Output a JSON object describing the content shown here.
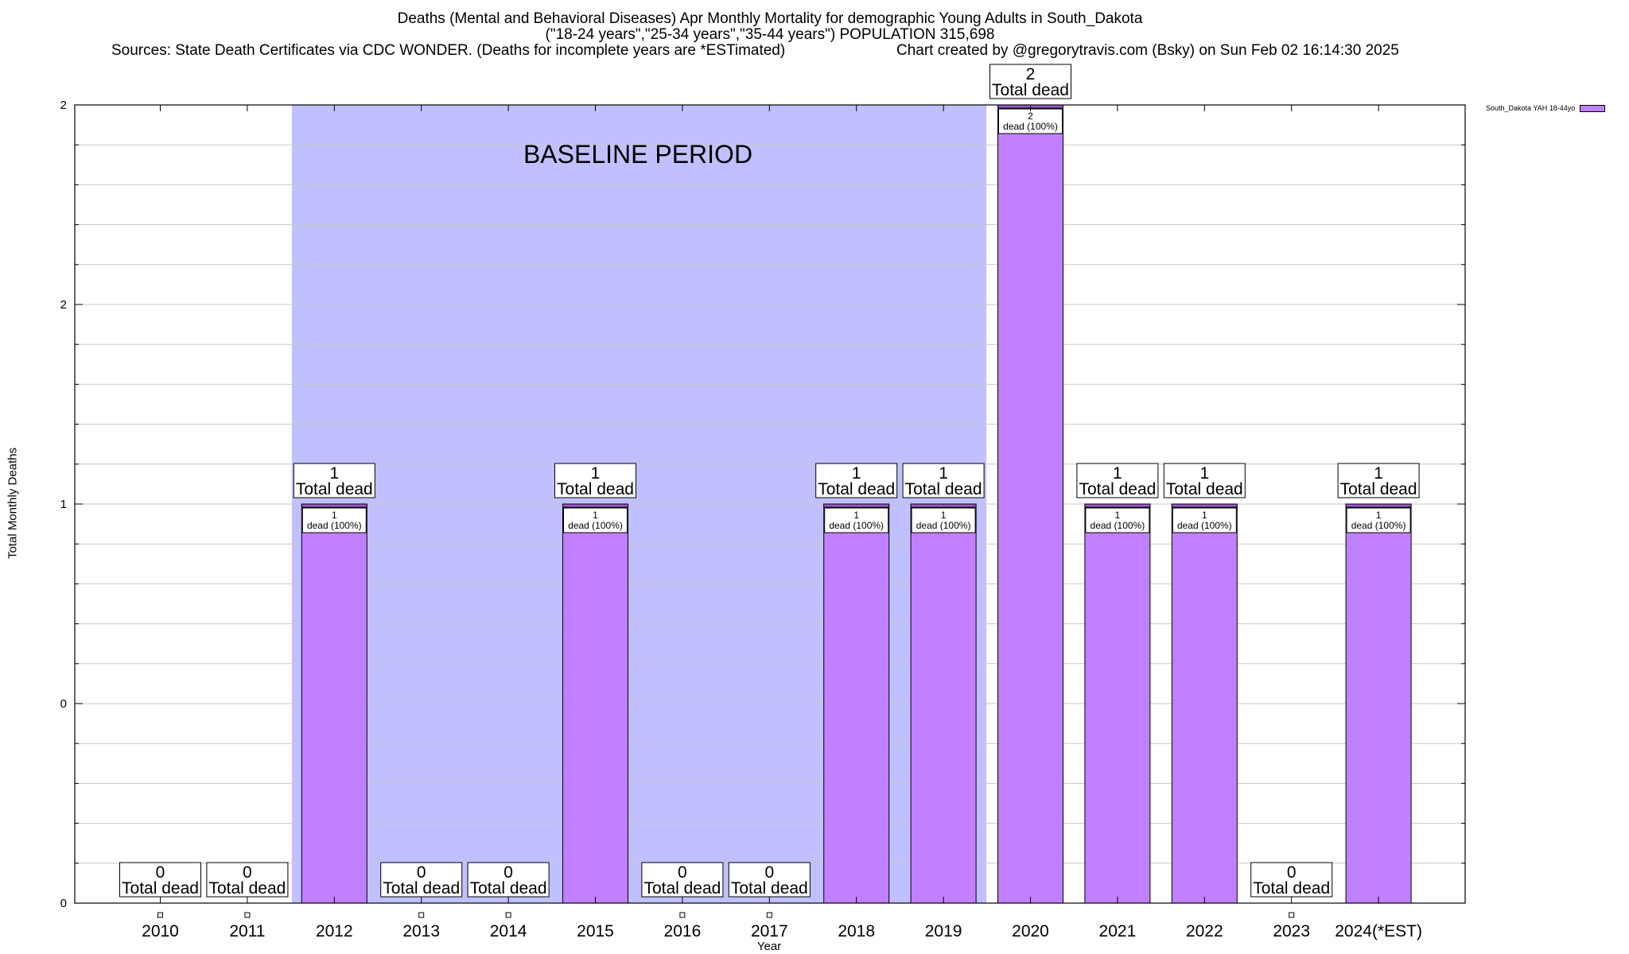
{
  "chart_data": {
    "type": "bar",
    "title_lines": [
      "Deaths (Mental and Behavioral Diseases) Apr Monthly Mortality for demographic Young Adults in South_Dakota",
      "(\"18-24 years\",\"25-34 years\",\"35-44 years\") POPULATION 315,698"
    ],
    "source": "Sources: State Death Certificates via CDC WONDER. (Deaths for incomplete years are *ESTimated)",
    "credit": "Chart created by @gregorytravis.com (Bsky) on Sun Feb 02 16:14:30 2025",
    "xlabel": "Year",
    "ylabel": "Total Monthly Deaths",
    "categories": [
      "2010",
      "2011",
      "2012",
      "2013",
      "2014",
      "2015",
      "2016",
      "2017",
      "2018",
      "2019",
      "2020",
      "2021",
      "2022",
      "2023",
      "2024(*EST)"
    ],
    "series": [
      {
        "name": "South_Dakota YAH 18-44yo",
        "values": [
          0,
          0,
          1,
          0,
          0,
          1,
          0,
          0,
          1,
          1,
          2,
          1,
          1,
          0,
          1
        ]
      }
    ],
    "total_labels": [
      "0\nTotal dead",
      "0\nTotal dead",
      "1\nTotal dead",
      "0\nTotal dead",
      "0\nTotal dead",
      "1\nTotal dead",
      "0\nTotal dead",
      "0\nTotal dead",
      "1\nTotal dead",
      "1\nTotal dead",
      "2\nTotal dead",
      "1\nTotal dead",
      "1\nTotal dead",
      "0\nTotal dead",
      "1\nTotal dead"
    ],
    "bar_labels": [
      "",
      "",
      "1\ndead (100%)",
      "",
      "",
      "1\ndead (100%)",
      "",
      "",
      "1\ndead (100%)",
      "1\ndead (100%)",
      "2\ndead (100%)",
      "1\ndead (100%)",
      "1\ndead (100%)",
      "",
      "1\ndead (100%)"
    ],
    "ylim": [
      0,
      2
    ],
    "ytick_labels": [
      "0",
      "0",
      "1",
      "2",
      "2"
    ],
    "grid": true,
    "legend_position": "top-right, outside plot",
    "baseline_region": {
      "label": "BASELINE PERIOD",
      "from": "2012",
      "to": "2019"
    },
    "colors": {
      "bar": "#c080ff",
      "bar_top": "#9b59d0",
      "baseline": "#c0c0ff",
      "grid": "#c8c8c8"
    }
  }
}
